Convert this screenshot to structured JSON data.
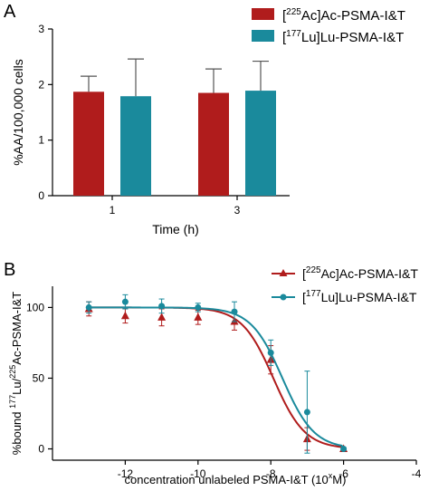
{
  "chart_data": [
    {
      "panel_label": "A",
      "type": "bar",
      "xlabel": "Time (h)",
      "ylabel": "%AA/100,000 cells",
      "ylim": [
        0,
        3
      ],
      "yticks": [
        "0",
        "1",
        "2",
        "3"
      ],
      "categories": [
        "1",
        "3"
      ],
      "grid": false,
      "legend_position": "top-right",
      "series": [
        {
          "name_sup": "225",
          "name_a": "[",
          "name_b": "Ac]Ac-PSMA-I&T",
          "color": "#b01c1c",
          "values": [
            1.87,
            1.85
          ],
          "errors": [
            0.28,
            0.43
          ]
        },
        {
          "name_sup": "177",
          "name_a": "[",
          "name_b": "Lu]Lu-PSMA-I&T",
          "color": "#1a8a9c",
          "values": [
            1.79,
            1.89
          ],
          "errors": [
            0.67,
            0.53
          ]
        }
      ]
    },
    {
      "panel_label": "B",
      "type": "line",
      "xlabel": "concentration unlabeled PSMA-I&T (10",
      "xlabel_sup": "x",
      "xlabel_end": "M)",
      "ylabel_a": "%bound ",
      "ylabel_sup1": "177",
      "ylabel_b": "Lu/",
      "ylabel_sup2": "225",
      "ylabel_c": "Ac-PSMA-I&T",
      "xlim": [
        -14,
        -4
      ],
      "ylim": [
        -8,
        115
      ],
      "xticks": [
        "-12",
        "-10",
        "-8",
        "-6",
        "-4"
      ],
      "yticks": [
        "0",
        "50",
        "100"
      ],
      "grid": false,
      "legend_position": "top-right",
      "series": [
        {
          "name_sup": "225",
          "name_a": "[",
          "name_b": "Ac]Ac-PSMA-I&T",
          "color": "#b01c1c",
          "marker": "triangle",
          "x": [
            -13,
            -12,
            -11,
            -10,
            -9,
            -8,
            -7,
            -6
          ],
          "y": [
            99,
            94,
            93,
            93,
            90,
            63,
            7,
            0
          ],
          "err": [
            5,
            5,
            6,
            5,
            6,
            10,
            8,
            1
          ],
          "ic50_log": -7.93,
          "hill": 1.0
        },
        {
          "name_sup": "177",
          "name_a": "[",
          "name_b": "Lu]Lu-PSMA-I&T",
          "color": "#1a8a9c",
          "marker": "circle",
          "x": [
            -13,
            -12,
            -11,
            -10,
            -9,
            -8,
            -7,
            -6
          ],
          "y": [
            100,
            104,
            101,
            100,
            97,
            68,
            26,
            0
          ],
          "err": [
            4,
            5,
            5,
            3,
            7,
            9,
            29,
            1
          ],
          "ic50_log": -7.68,
          "hill": 1.0
        }
      ]
    }
  ]
}
